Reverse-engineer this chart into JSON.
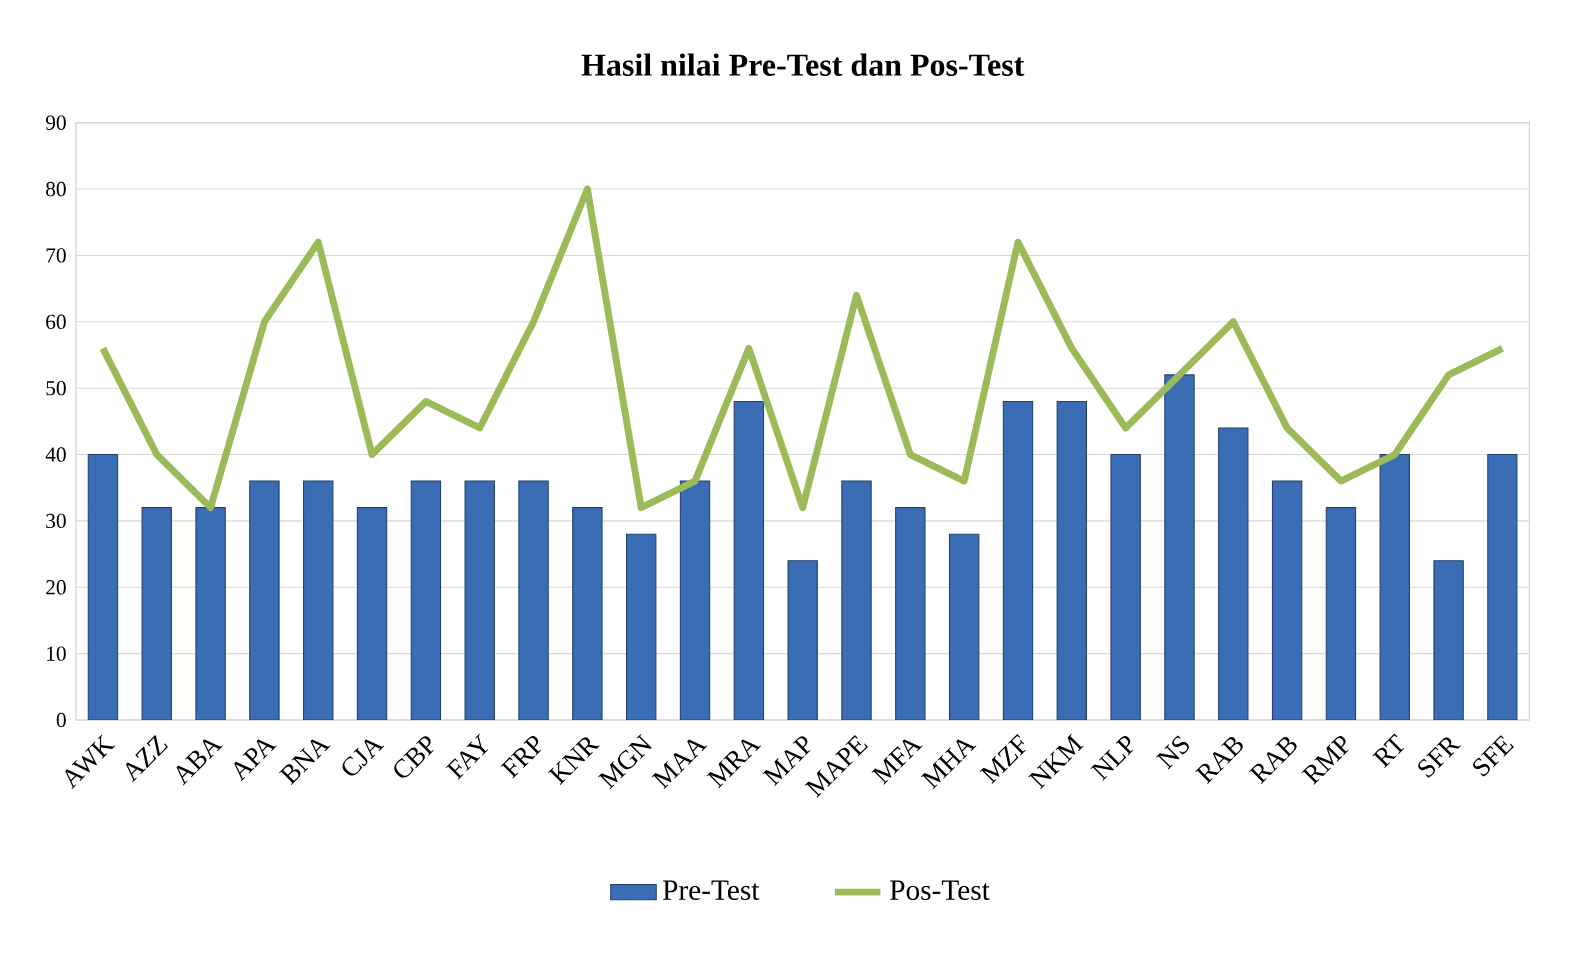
{
  "chart_data": {
    "type": "bar",
    "title": "Hasil nilai Pre-Test dan Pos-Test",
    "categories": [
      "AWK",
      "AZZ",
      "ABA",
      "APA",
      "BNA",
      "CJA",
      "CBP",
      "FAY",
      "FRP",
      "KNR",
      "MGN",
      "MAA",
      "MRA",
      "MAP",
      "MAPE",
      "MFA",
      "MHA",
      "MZF",
      "NKM",
      "NLP",
      "NS",
      "RAB",
      "RAB",
      "RMP",
      "RT",
      "SFR",
      "SFE"
    ],
    "series": [
      {
        "name": "Pre-Test",
        "color": "#3a6db4",
        "values": [
          40,
          32,
          32,
          36,
          36,
          32,
          36,
          36,
          36,
          32,
          28,
          36,
          48,
          24,
          36,
          32,
          28,
          48,
          48,
          40,
          52,
          44,
          36,
          32,
          40,
          24,
          40
        ]
      },
      {
        "name": "Pos-Test",
        "type": "line",
        "color": "#9bbb59",
        "values": [
          56,
          40,
          32,
          60,
          72,
          40,
          48,
          44,
          60,
          80,
          32,
          36,
          56,
          32,
          64,
          40,
          36,
          72,
          56,
          44,
          52,
          60,
          44,
          36,
          40,
          52,
          56
        ]
      }
    ],
    "ylim": [
      0,
      90
    ],
    "yticks": [
      0,
      10,
      20,
      30,
      40,
      50,
      60,
      70,
      80,
      90
    ],
    "grid": "y",
    "legend": "bottom"
  }
}
